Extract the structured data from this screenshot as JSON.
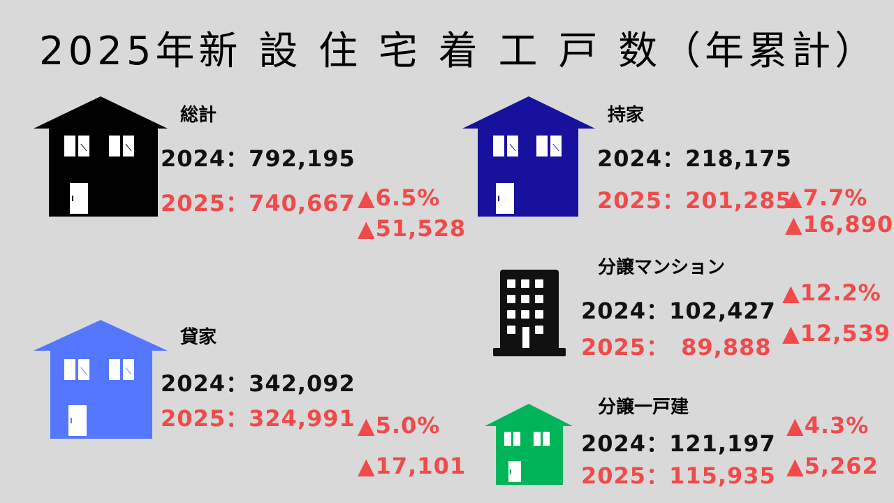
{
  "title": "2025年新 設 住 宅 着 工 戸 数（年累計）",
  "colors": {
    "total": "#000000",
    "owned": "#17119e",
    "rental": "#5577ff",
    "condo": "#111111",
    "detached": "#00b559",
    "decrease": "#f04a4a",
    "background": "#d9d9d9"
  },
  "sections": {
    "total": {
      "label": "総計",
      "y2024": "2024：792,195",
      "y2025": "2025：740,667",
      "change_pct": "▲6.5%",
      "change_abs": "▲51,528",
      "icon": "house-icon"
    },
    "owned": {
      "label": "持家",
      "y2024": "2024：218,175",
      "y2025": "2025：201,285",
      "change_pct": "▲7.7%",
      "change_abs": "▲16,890",
      "icon": "house-icon"
    },
    "rental": {
      "label": "貸家",
      "y2024": "2024：342,092",
      "y2025": "2025：324,991",
      "change_pct": "▲5.0%",
      "change_abs": "▲17,101",
      "icon": "house-icon"
    },
    "condo": {
      "label": "分譲マンション",
      "y2024": "2024：102,427",
      "y2025": "2025：　89,888",
      "change_pct": "▲12.2%",
      "change_abs": "▲12,539",
      "icon": "apartment-building-icon"
    },
    "detached": {
      "label": "分譲一戸建",
      "y2024": "2024：121,197",
      "y2025": "2025：115,935",
      "change_pct": "▲4.3%",
      "change_abs": "▲5,262",
      "icon": "house-icon"
    }
  }
}
